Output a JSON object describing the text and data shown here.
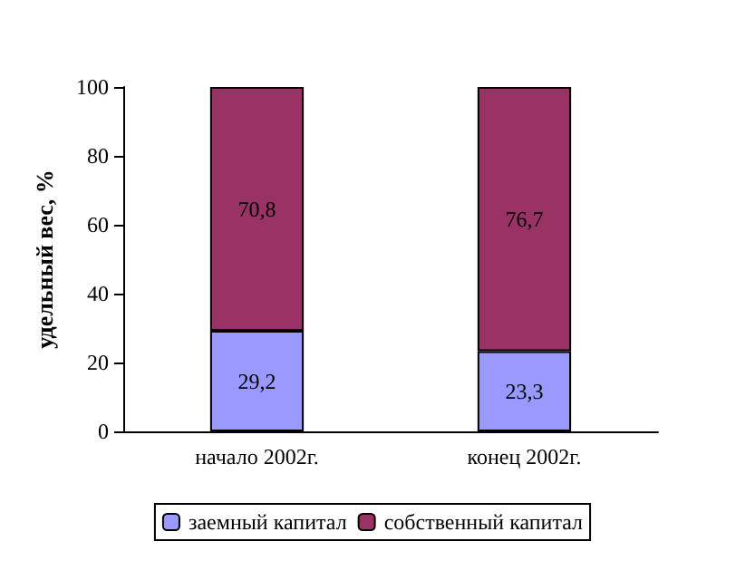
{
  "chart_data": {
    "type": "bar",
    "ylabel": "удельный вес, %",
    "categories": [
      "начало 2002г.",
      "конец 2002г."
    ],
    "series": [
      {
        "name": "заемный капитал",
        "color": "#9999ff",
        "values": [
          29.2,
          23.3
        ],
        "value_labels": [
          "29,2",
          "23,3"
        ]
      },
      {
        "name": "собственный капитал",
        "color": "#993366",
        "values": [
          70.8,
          76.7
        ],
        "value_labels": [
          "70,8",
          "76,7"
        ]
      }
    ],
    "stacked": true,
    "ylim": [
      0,
      100
    ],
    "yticks": [
      0,
      20,
      40,
      60,
      80,
      100
    ],
    "legend": "bottom",
    "grid": false
  }
}
